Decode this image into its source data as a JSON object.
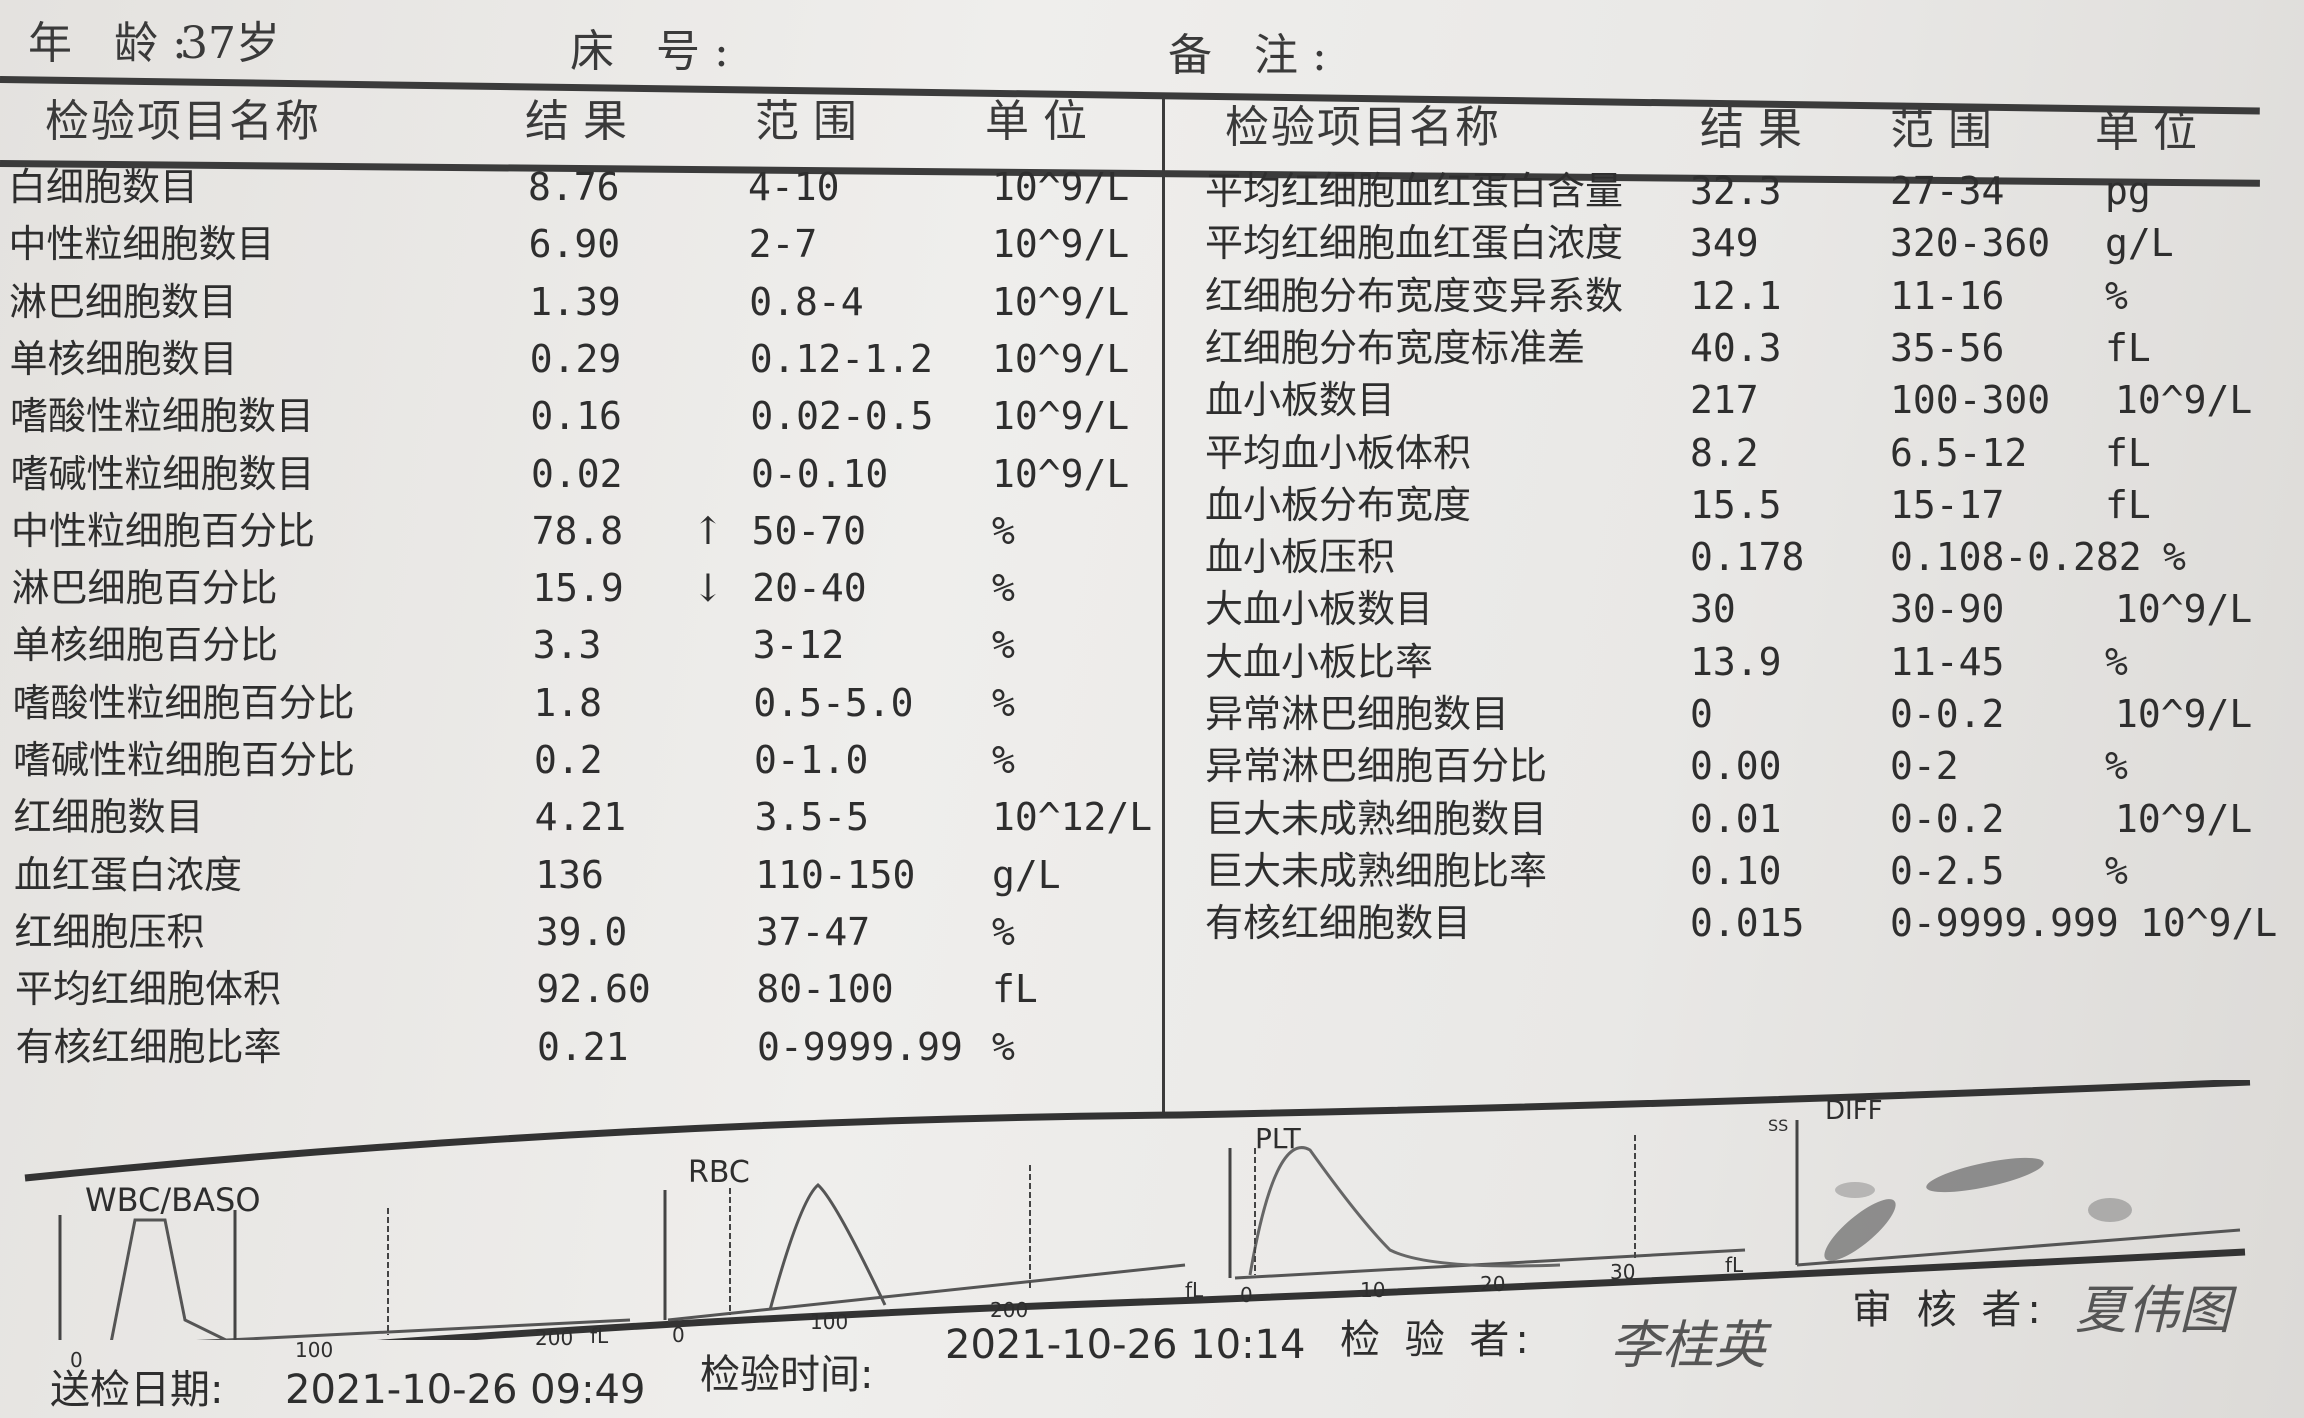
{
  "patient": {
    "age_label": "年    龄:",
    "age_value": "37岁",
    "bed_label": "床    号:",
    "remark_label": "备    注:"
  },
  "table_headers": {
    "name": "检验项目名称",
    "result": "结果",
    "range": "范围",
    "unit": "单位"
  },
  "left_rows": [
    {
      "name": "白细胞数目",
      "result": "8.76",
      "flag": "",
      "range": "4-10",
      "unit": "10^9/L"
    },
    {
      "name": "中性粒细胞数目",
      "result": "6.90",
      "flag": "",
      "range": "2-7",
      "unit": "10^9/L"
    },
    {
      "name": "淋巴细胞数目",
      "result": "1.39",
      "flag": "",
      "range": "0.8-4",
      "unit": "10^9/L"
    },
    {
      "name": "单核细胞数目",
      "result": "0.29",
      "flag": "",
      "range": "0.12-1.2",
      "unit": "10^9/L"
    },
    {
      "name": "嗜酸性粒细胞数目",
      "result": "0.16",
      "flag": "",
      "range": "0.02-0.5",
      "unit": "10^9/L"
    },
    {
      "name": "嗜碱性粒细胞数目",
      "result": "0.02",
      "flag": "",
      "range": "0-0.10",
      "unit": "10^9/L"
    },
    {
      "name": "中性粒细胞百分比",
      "result": "78.8",
      "flag": "↑",
      "range": "50-70",
      "unit": "%"
    },
    {
      "name": "淋巴细胞百分比",
      "result": "15.9",
      "flag": "↓",
      "range": "20-40",
      "unit": "%"
    },
    {
      "name": "单核细胞百分比",
      "result": "3.3",
      "flag": "",
      "range": "3-12",
      "unit": "%"
    },
    {
      "name": "嗜酸性粒细胞百分比",
      "result": "1.8",
      "flag": "",
      "range": "0.5-5.0",
      "unit": "%"
    },
    {
      "name": "嗜碱性粒细胞百分比",
      "result": "0.2",
      "flag": "",
      "range": "0-1.0",
      "unit": "%"
    },
    {
      "name": "红细胞数目",
      "result": "4.21",
      "flag": "",
      "range": "3.5-5",
      "unit": "10^12/L"
    },
    {
      "name": "血红蛋白浓度",
      "result": "136",
      "flag": "",
      "range": "110-150",
      "unit": "g/L"
    },
    {
      "name": "红细胞压积",
      "result": "39.0",
      "flag": "",
      "range": "37-47",
      "unit": "%"
    },
    {
      "name": "平均红细胞体积",
      "result": "92.60",
      "flag": "",
      "range": "80-100",
      "unit": "fL"
    },
    {
      "name": "有核红细胞比率",
      "result": "0.21",
      "flag": "",
      "range": "0-9999.99",
      "unit": "%"
    }
  ],
  "right_rows": [
    {
      "name": "平均红细胞血红蛋白含量",
      "result": "32.3",
      "range": "27-34",
      "unit": "pg"
    },
    {
      "name": "平均红细胞血红蛋白浓度",
      "result": "349",
      "range": "320-360",
      "unit": "g/L"
    },
    {
      "name": "红细胞分布宽度变异系数",
      "result": "12.1",
      "range": "11-16",
      "unit": "%"
    },
    {
      "name": "红细胞分布宽度标准差",
      "result": "40.3",
      "range": "35-56",
      "unit": "fL"
    },
    {
      "name": "血小板数目",
      "result": "217",
      "range": "100-300",
      "unit": "10^9/L"
    },
    {
      "name": "平均血小板体积",
      "result": "8.2",
      "range": "6.5-12",
      "unit": "fL"
    },
    {
      "name": "血小板分布宽度",
      "result": "15.5",
      "range": "15-17",
      "unit": "fL"
    },
    {
      "name": "血小板压积",
      "result": "0.178",
      "range": "0.108-0.282",
      "unit": "%"
    },
    {
      "name": "大血小板数目",
      "result": "30",
      "range": "30-90",
      "unit": "10^9/L"
    },
    {
      "name": "大血小板比率",
      "result": "13.9",
      "range": "11-45",
      "unit": "%"
    },
    {
      "name": "异常淋巴细胞数目",
      "result": "0",
      "range": "0-0.2",
      "unit": "10^9/L"
    },
    {
      "name": "异常淋巴细胞百分比",
      "result": "0.00",
      "range": "0-2",
      "unit": "%"
    },
    {
      "name": "巨大未成熟细胞数目",
      "result": "0.01",
      "range": "0-0.2",
      "unit": "10^9/L"
    },
    {
      "name": "巨大未成熟细胞比率",
      "result": "0.10",
      "range": "0-2.5",
      "unit": "%"
    },
    {
      "name": "有核红细胞数目",
      "result": "0.015",
      "range": "0-9999.999",
      "unit": "10^9/L"
    }
  ],
  "histograms": {
    "wbc": {
      "title": "WBC/BASO",
      "ticks": [
        "0",
        "100",
        "200"
      ],
      "unit": "fL"
    },
    "rbc": {
      "title": "RBC",
      "ticks": [
        "0",
        "100",
        "200"
      ],
      "unit": "fL"
    },
    "plt": {
      "title": "PLT",
      "ticks": [
        "0",
        "10",
        "20",
        "30"
      ],
      "unit": "fL"
    },
    "diff": {
      "title": "DIFF",
      "axis_label": "SS"
    }
  },
  "footer": {
    "submit_date_label": "送检日期:",
    "submit_date": "2021-10-26 09:49",
    "test_time_label": "检验时间:",
    "test_time": "2021-10-26 10:14",
    "tester_label": "检 验 者:",
    "tester_signature": "李桂英",
    "reviewer_label": "审 核 者:",
    "reviewer_signature": "夏伟图"
  }
}
